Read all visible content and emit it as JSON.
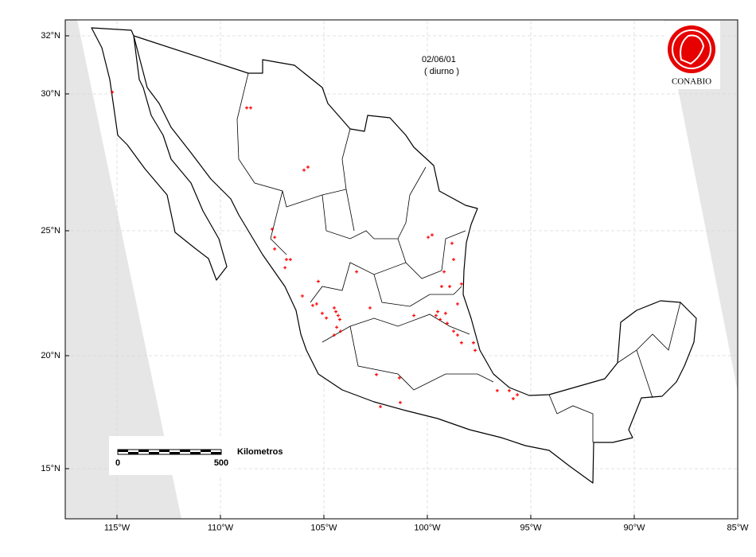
{
  "map": {
    "title": "02/06/01",
    "subtitle": "( diurno )",
    "logo": "CONABIO",
    "scale_bar": {
      "unit": "Kilometros",
      "labels": [
        0,
        500
      ]
    },
    "xlim": [
      -117.5,
      -85
    ],
    "ylim": [
      12.6,
      32.5
    ],
    "xticks": [
      {
        "value": -115,
        "label": "115°W"
      },
      {
        "value": -110,
        "label": "110°W"
      },
      {
        "value": -105,
        "label": "105°W"
      },
      {
        "value": -100,
        "label": "100°W"
      },
      {
        "value": -95,
        "label": "95°W"
      },
      {
        "value": -90,
        "label": "90°W"
      },
      {
        "value": -85,
        "label": "85°W"
      }
    ],
    "yticks": [
      {
        "value": 15,
        "label": "15°N"
      },
      {
        "value": 20,
        "label": "20°N"
      },
      {
        "value": 25,
        "label": "25°N"
      },
      {
        "value": 30,
        "label": "30°N"
      },
      {
        "value": 32,
        "label": "32°N"
      }
    ],
    "grid": true,
    "point_color": "#ff0000",
    "fires": {
      "lon": [
        -115.23,
        -108.73,
        -108.54,
        -105.96,
        -105.77,
        -107.5,
        -107.38,
        -107.38,
        -106.81,
        -106.62,
        -106.88,
        -105.27,
        -106.04,
        -105.54,
        -105.35,
        -105.08,
        -104.88,
        -104.5,
        -104.42,
        -104.31,
        -104.23,
        -104.38,
        -104.5,
        -104.19,
        -103.42,
        -102.77,
        -99.96,
        -99.77,
        -98.81,
        -98.73,
        -99.19,
        -99.31,
        -98.92,
        -98.35,
        -98.54,
        -99.5,
        -99.58,
        -99.38,
        -99.12,
        -99.04,
        -98.73,
        -98.54,
        -98.35,
        -97.77,
        -97.69,
        -102.46,
        -101.35,
        -102.27,
        -101.31,
        -100.65,
        -96.62,
        -96.04,
        -95.85,
        -95.65
      ],
      "lat": [
        30.06,
        29.51,
        29.51,
        27.27,
        27.38,
        25.06,
        24.75,
        24.3,
        23.89,
        23.89,
        23.57,
        23.03,
        22.45,
        22.07,
        22.13,
        21.75,
        21.56,
        21.97,
        21.82,
        21.66,
        21.5,
        21.18,
        20.86,
        21.02,
        23.41,
        21.97,
        24.75,
        24.84,
        24.52,
        23.89,
        23.41,
        22.83,
        22.83,
        22.93,
        22.13,
        21.82,
        21.66,
        21.5,
        21.75,
        21.34,
        21.02,
        20.86,
        20.54,
        20.54,
        20.22,
        19.2,
        19.06,
        17.81,
        17.99,
        21.66,
        18.51,
        18.51,
        18.16,
        18.33
      ]
    }
  }
}
